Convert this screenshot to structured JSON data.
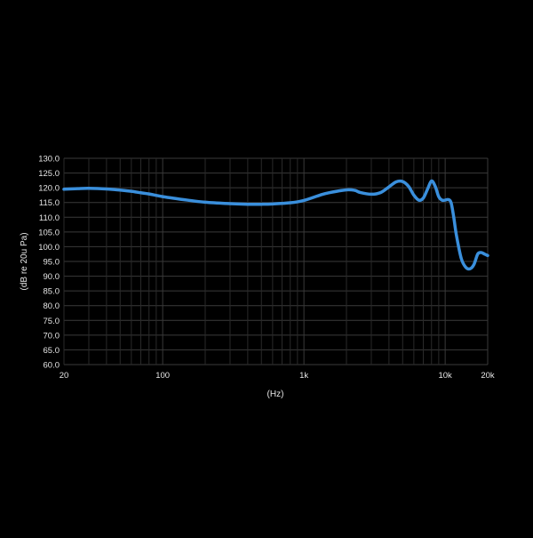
{
  "colors": {
    "background": "#000000",
    "grid": "#3a3a3a",
    "grid_minor": "#2a2a2a",
    "axis_text": "#e6e6e6",
    "series_line": "#3a8fdc"
  },
  "chart_data": {
    "type": "line",
    "xscale": "log",
    "xlim": [
      20,
      20000
    ],
    "ylim": [
      60,
      130
    ],
    "xlabel": "(Hz)",
    "ylabel": "(dB re 20u Pa)",
    "grid": true,
    "x_ticks": [
      {
        "value": 20,
        "label": "20"
      },
      {
        "value": 100,
        "label": "100"
      },
      {
        "value": 1000,
        "label": "1k"
      },
      {
        "value": 10000,
        "label": "10k"
      },
      {
        "value": 20000,
        "label": "20k"
      }
    ],
    "y_ticks": [
      "60.0",
      "65.0",
      "70.0",
      "75.0",
      "80.0",
      "85.0",
      "90.0",
      "95.0",
      "100.0",
      "105.0",
      "110.0",
      "115.0",
      "120.0",
      "125.0",
      "130.0"
    ],
    "series": [
      {
        "x": [
          20,
          25,
          30,
          40,
          50,
          60,
          70,
          80,
          100,
          150,
          200,
          300,
          400,
          500,
          600,
          800,
          1000,
          1300,
          1500,
          2000,
          2300,
          2500,
          3000,
          3500,
          4000,
          4500,
          5000,
          5500,
          6000,
          6500,
          7000,
          7500,
          8000,
          8500,
          9000,
          9500,
          10000,
          10500,
          11000,
          11500,
          12000,
          13000,
          14000,
          15000,
          16000,
          17000,
          18000,
          19000,
          20000
        ],
        "y": [
          119.5,
          119.7,
          119.8,
          119.6,
          119.2,
          118.8,
          118.3,
          117.9,
          117.0,
          115.8,
          115.1,
          114.6,
          114.4,
          114.4,
          114.5,
          114.9,
          115.7,
          117.5,
          118.3,
          119.3,
          119.1,
          118.4,
          117.8,
          118.4,
          120.3,
          122.0,
          122.1,
          120.5,
          117.5,
          115.8,
          116.5,
          119.5,
          122.3,
          120.5,
          117.0,
          115.8,
          115.8,
          116.0,
          115.0,
          110.0,
          104.0,
          96.0,
          93.0,
          92.5,
          94.0,
          97.5,
          98.0,
          97.5,
          97.0
        ]
      }
    ]
  }
}
